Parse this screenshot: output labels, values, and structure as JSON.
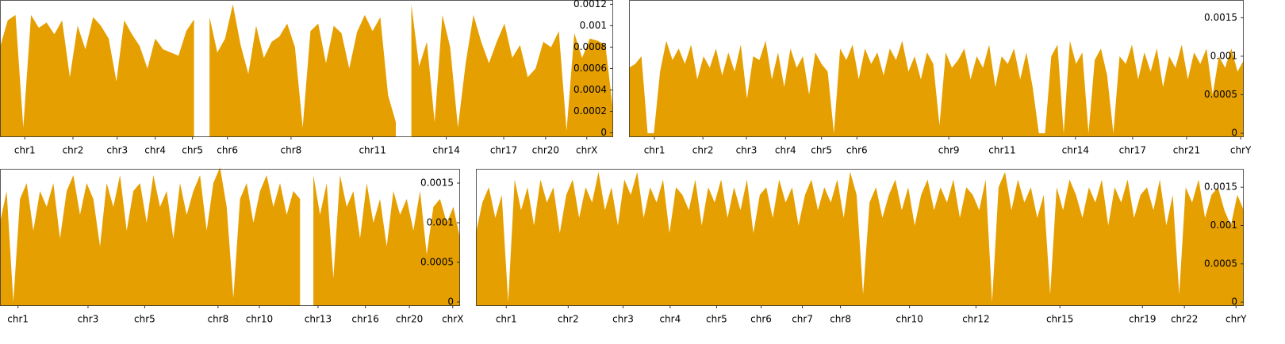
{
  "chart_data": [
    {
      "type": "area",
      "color": "#e69f00",
      "xlim": [
        0,
        79
      ],
      "ylim": [
        -4e-05,
        0.00124
      ],
      "yticks": [
        0,
        0.0002,
        0.0004,
        0.0006,
        0.0008,
        0.001,
        0.0012
      ],
      "xticks": [
        {
          "value": 3.2,
          "label": "chr1"
        },
        {
          "value": 9.4,
          "label": "chr2"
        },
        {
          "value": 15.1,
          "label": "chr3"
        },
        {
          "value": 20,
          "label": "chr4"
        },
        {
          "value": 24.8,
          "label": "chr5"
        },
        {
          "value": 29.3,
          "label": "chr6"
        },
        {
          "value": 37.5,
          "label": "chr8"
        },
        {
          "value": 48,
          "label": "chr11"
        },
        {
          "value": 57.5,
          "label": "chr14"
        },
        {
          "value": 64.9,
          "label": "chr17"
        },
        {
          "value": 70.3,
          "label": "chr20"
        },
        {
          "value": 75.6,
          "label": "chrX"
        }
      ],
      "values": [
        0.0008,
        0.00105,
        0.0011,
        5e-05,
        0.0011,
        0.00098,
        0.00103,
        0.00092,
        0.00105,
        0.00052,
        0.001,
        0.00078,
        0.00108,
        0.001,
        0.00088,
        0.00048,
        0.00105,
        0.00092,
        0.00081,
        0.0006,
        0.00088,
        0.00078,
        0.00075,
        0.00072,
        0.00095,
        0.00106,
        null,
        0.00108,
        0.00075,
        0.00088,
        0.0012,
        0.00082,
        0.00055,
        0.001,
        0.0007,
        0.00085,
        0.0009,
        0.00102,
        0.0008,
        5e-05,
        0.00095,
        0.00102,
        0.00065,
        0.001,
        0.00093,
        0.0006,
        0.00094,
        0.0011,
        0.00095,
        0.00108,
        0.00035,
        0.0001,
        null,
        0.0012,
        0.00062,
        0.00085,
        0.0001,
        0.0011,
        0.0008,
        5e-05,
        0.00065,
        0.0011,
        0.00085,
        0.00065,
        0.00085,
        0.00102,
        0.0007,
        0.00082,
        0.00052,
        0.0006,
        0.00085,
        0.0008,
        0.00095,
        2e-05,
        0.00093,
        0.0007,
        0.00088,
        0.00086,
        0.00082,
        0.0002
      ]
    },
    {
      "type": "area",
      "color": "#e69f00",
      "xlim": [
        0,
        99
      ],
      "ylim": [
        -5e-05,
        0.00173
      ],
      "yticks": [
        0,
        0.0005,
        0.001,
        0.0015
      ],
      "xticks": [
        {
          "value": 4.1,
          "label": "chr1"
        },
        {
          "value": 11.9,
          "label": "chr2"
        },
        {
          "value": 18.9,
          "label": "chr3"
        },
        {
          "value": 25.2,
          "label": "chr4"
        },
        {
          "value": 31,
          "label": "chr5"
        },
        {
          "value": 36.7,
          "label": "chr6"
        },
        {
          "value": 51.5,
          "label": "chr9"
        },
        {
          "value": 60.1,
          "label": "chr11"
        },
        {
          "value": 71.9,
          "label": "chr14"
        },
        {
          "value": 81.1,
          "label": "chr17"
        },
        {
          "value": 89.8,
          "label": "chr21"
        },
        {
          "value": 98.5,
          "label": "chrY"
        }
      ],
      "values": [
        0.00085,
        0.0009,
        0.001,
        0,
        0,
        0.0008,
        0.0012,
        0.00095,
        0.0011,
        0.0009,
        0.00115,
        0.0007,
        0.001,
        0.00085,
        0.0011,
        0.00075,
        0.00105,
        0.0008,
        0.00115,
        0.00045,
        0.001,
        0.00095,
        0.0012,
        0.0007,
        0.00105,
        0.0006,
        0.0011,
        0.00085,
        0.001,
        0.0005,
        0.00105,
        0.0009,
        0.0008,
        0,
        0.0011,
        0.00095,
        0.00115,
        0.0007,
        0.0011,
        0.0009,
        0.00105,
        0.00075,
        0.0011,
        0.00095,
        0.0012,
        0.0008,
        0.001,
        0.0007,
        0.00105,
        0.0009,
        0.0001,
        0.00105,
        0.00085,
        0.00095,
        0.0011,
        0.0007,
        0.001,
        0.00085,
        0.00115,
        0.0006,
        0.001,
        0.0009,
        0.0011,
        0.0007,
        0.00105,
        0.0006,
        0,
        0,
        0.001,
        0.00115,
        0,
        0.0012,
        0.0009,
        0.00105,
        0,
        0.00095,
        0.0011,
        0.00075,
        0,
        0.001,
        0.0009,
        0.00115,
        0.0007,
        0.00105,
        0.0008,
        0.0011,
        0.0006,
        0.001,
        0.00085,
        0.00115,
        0.0007,
        0.00105,
        0.0009,
        0.0011,
        0.0005,
        0.001,
        0.00085,
        0.0011,
        0.0008,
        0.00095
      ]
    },
    {
      "type": "area",
      "color": "#e69f00",
      "xlim": [
        0,
        69
      ],
      "ylim": [
        -5e-05,
        0.00168
      ],
      "yticks": [
        0,
        0.0005,
        0.001,
        0.0015
      ],
      "xticks": [
        {
          "value": 2.7,
          "label": "chr1"
        },
        {
          "value": 13.2,
          "label": "chr3"
        },
        {
          "value": 21.7,
          "label": "chr5"
        },
        {
          "value": 32.7,
          "label": "chr8"
        },
        {
          "value": 38.9,
          "label": "chr10"
        },
        {
          "value": 47.7,
          "label": "chr13"
        },
        {
          "value": 54.8,
          "label": "chr16"
        },
        {
          "value": 61.4,
          "label": "chr20"
        },
        {
          "value": 67.9,
          "label": "chrX"
        }
      ],
      "values": [
        0.001,
        0.0014,
        0,
        0.0013,
        0.0015,
        0.0009,
        0.0014,
        0.0012,
        0.0015,
        0.0008,
        0.0014,
        0.0016,
        0.0011,
        0.0015,
        0.0013,
        0.0007,
        0.0015,
        0.0012,
        0.0016,
        0.0009,
        0.0014,
        0.0015,
        0.001,
        0.0016,
        0.0012,
        0.0014,
        0.0008,
        0.0015,
        0.0011,
        0.0014,
        0.0016,
        0.0009,
        0.0015,
        0.0017,
        0.0012,
        5e-05,
        0.0013,
        0.0015,
        0.001,
        0.0014,
        0.0016,
        0.0012,
        0.0015,
        0.0011,
        0.0014,
        0.0013,
        null,
        0.0016,
        0.0011,
        0.0015,
        0.0003,
        0.0016,
        0.0012,
        0.0014,
        0.0008,
        0.0015,
        0.001,
        0.0013,
        0.0007,
        0.0014,
        0.0011,
        0.0013,
        0.0009,
        0.0014,
        0.0006,
        0.0012,
        0.0013,
        0.001,
        0.0012,
        0.0008
      ]
    },
    {
      "type": "area",
      "color": "#e69f00",
      "xlim": [
        0,
        119
      ],
      "ylim": [
        -5e-05,
        0.00174
      ],
      "yticks": [
        0,
        0.0005,
        0.001,
        0.0015
      ],
      "xticks": [
        {
          "value": 4.7,
          "label": "chr1"
        },
        {
          "value": 14.3,
          "label": "chr2"
        },
        {
          "value": 22.8,
          "label": "chr3"
        },
        {
          "value": 30.1,
          "label": "chr4"
        },
        {
          "value": 37.3,
          "label": "chr5"
        },
        {
          "value": 44.2,
          "label": "chr6"
        },
        {
          "value": 50.6,
          "label": "chr7"
        },
        {
          "value": 56.5,
          "label": "chr8"
        },
        {
          "value": 67.2,
          "label": "chr10"
        },
        {
          "value": 77.5,
          "label": "chr12"
        },
        {
          "value": 90.5,
          "label": "chr15"
        },
        {
          "value": 103.3,
          "label": "chr19"
        },
        {
          "value": 109.8,
          "label": "chr22"
        },
        {
          "value": 117.8,
          "label": "chrY"
        }
      ],
      "values": [
        0.0009,
        0.0013,
        0.0015,
        0.0011,
        0.0014,
        0,
        0.0016,
        0.0012,
        0.0015,
        0.001,
        0.0016,
        0.0013,
        0.0015,
        0.0009,
        0.0014,
        0.0016,
        0.0011,
        0.0015,
        0.0013,
        0.0017,
        0.0012,
        0.0015,
        0.001,
        0.0016,
        0.0014,
        0.0017,
        0.0011,
        0.0015,
        0.0013,
        0.0016,
        0.0009,
        0.0015,
        0.0014,
        0.0012,
        0.0016,
        0.001,
        0.0015,
        0.0013,
        0.0016,
        0.0011,
        0.0015,
        0.0012,
        0.0016,
        0.0009,
        0.0014,
        0.0015,
        0.0011,
        0.0016,
        0.0013,
        0.0015,
        0.001,
        0.0014,
        0.0016,
        0.0012,
        0.0015,
        0.0013,
        0.0016,
        0.0011,
        0.0017,
        0.0014,
        0.0001,
        0.0013,
        0.0015,
        0.0011,
        0.0014,
        0.0016,
        0.0012,
        0.0015,
        0.001,
        0.0014,
        0.0016,
        0.0012,
        0.0015,
        0.0013,
        0.0016,
        0.0011,
        0.0015,
        0.0014,
        0.0012,
        0.0016,
        0,
        0.0015,
        0.0017,
        0.0012,
        0.0016,
        0.0013,
        0.0015,
        0.0011,
        0.0014,
        0.0001,
        0.0015,
        0.0012,
        0.0016,
        0.0014,
        0.0011,
        0.0015,
        0.0013,
        0.0016,
        0.001,
        0.0015,
        0.0013,
        0.0016,
        0.0011,
        0.0014,
        0.0015,
        0.0012,
        0.0016,
        0.001,
        0.0014,
        0.0001,
        0.0015,
        0.0013,
        0.0016,
        0.0011,
        0.0014,
        0.0015,
        0.0012,
        0.001,
        0.0014,
        0.0012
      ]
    }
  ]
}
